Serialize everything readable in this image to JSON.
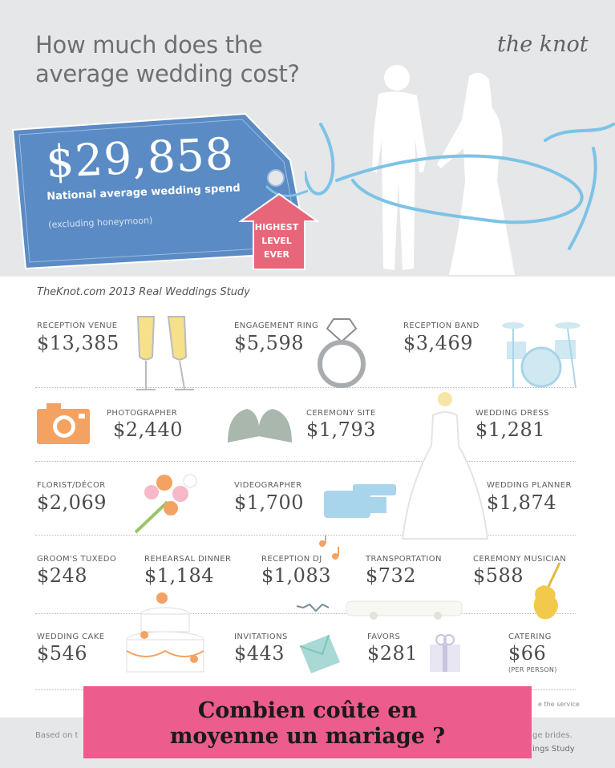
{
  "header": {
    "title_line1": "How much does the",
    "title_line2": "average wedding cost?",
    "logo": "the knot"
  },
  "price_tag": {
    "amount": "$29,858",
    "label": "National average wedding spend",
    "note": "(excluding honeymoon)",
    "badge_line1": "HIGHEST",
    "badge_line2": "LEVEL",
    "badge_line3": "EVER"
  },
  "study": "TheKnot.com 2013 Real Weddings Study",
  "items": {
    "reception_venue": {
      "label": "RECEPTION VENUE",
      "value": "$13,385"
    },
    "engagement_ring": {
      "label": "ENGAGEMENT RING",
      "value": "$5,598"
    },
    "reception_band": {
      "label": "RECEPTION BAND",
      "value": "$3,469"
    },
    "photographer": {
      "label": "PHOTOGRAPHER",
      "value": "$2,440"
    },
    "ceremony_site": {
      "label": "CEREMONY SITE",
      "value": "$1,793"
    },
    "wedding_dress": {
      "label": "WEDDING DRESS",
      "value": "$1,281"
    },
    "florist": {
      "label": "FLORIST/DÉCOR",
      "value": "$2,069"
    },
    "videographer": {
      "label": "VIDEOGRAPHER",
      "value": "$1,700"
    },
    "wedding_planner": {
      "label": "WEDDING PLANNER",
      "value": "$1,874"
    },
    "grooms_tuxedo": {
      "label": "GROOM'S TUXEDO",
      "value": "$248"
    },
    "rehearsal_dinner": {
      "label": "REHEARSAL DINNER",
      "value": "$1,184"
    },
    "reception_dj": {
      "label": "RECEPTION DJ",
      "value": "$1,083"
    },
    "transportation": {
      "label": "TRANSPORTATION",
      "value": "$732"
    },
    "ceremony_musician": {
      "label": "CEREMONY MUSICIAN",
      "value": "$588"
    },
    "wedding_cake": {
      "label": "WEDDING CAKE",
      "value": "$546"
    },
    "invitations": {
      "label": "INVITATIONS",
      "value": "$443"
    },
    "favors": {
      "label": "FAVORS",
      "value": "$281"
    },
    "catering": {
      "label": "CATERING",
      "value": "$66",
      "note": "(PER PERSON)"
    }
  },
  "footer": {
    "left": "Based on t",
    "right_top": "ge brides.",
    "right_bottom": "ings Study",
    "fine": "e the service"
  },
  "banner": {
    "line1": "Combien coûte en",
    "line2": "moyenne un mariage ?",
    "color": "#ec5c8c"
  },
  "colors": {
    "tag_blue": "#5a8bc4",
    "badge_pink": "#e8667a",
    "ribbon_blue": "#7cc3e6",
    "orange": "#f4a261"
  }
}
